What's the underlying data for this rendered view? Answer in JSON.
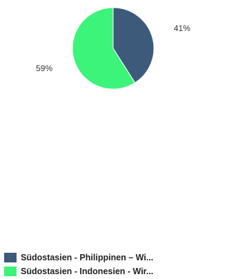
{
  "chart_data": {
    "type": "pie",
    "categories": [
      "Südostasien - Philippinen – Wi...",
      "Südostasien - Indonesien - Wir..."
    ],
    "values": [
      41,
      59
    ],
    "data_labels": [
      "41%",
      "59%"
    ],
    "colors": [
      "#3d5a7a",
      "#3cf47a"
    ],
    "legend_position": "bottom"
  }
}
